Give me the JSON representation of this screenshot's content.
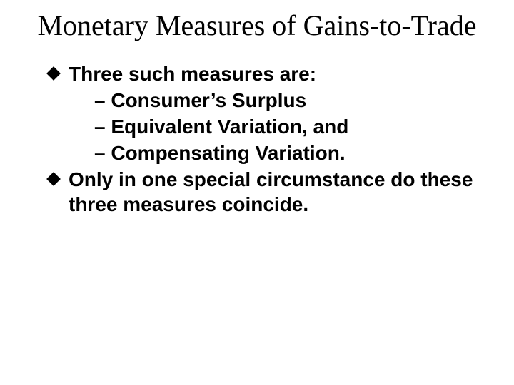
{
  "slide": {
    "title": "Monetary Measures of Gains-to-Trade",
    "title_fontsize_pt": 40,
    "title_font": "Times New Roman",
    "body_fontsize_pt": 28,
    "body_font": "Arial",
    "body_weight": 700,
    "colors": {
      "background": "#ffffff",
      "text": "#000000",
      "bullet": "#000000"
    },
    "bullets": [
      {
        "text": "Three such measures are:",
        "sub": [
          "– Consumer’s Surplus",
          "– Equivalent Variation, and",
          "– Compensating Variation."
        ]
      },
      {
        "text": "Only in one special circumstance do these three measures coincide.",
        "sub": []
      }
    ]
  }
}
